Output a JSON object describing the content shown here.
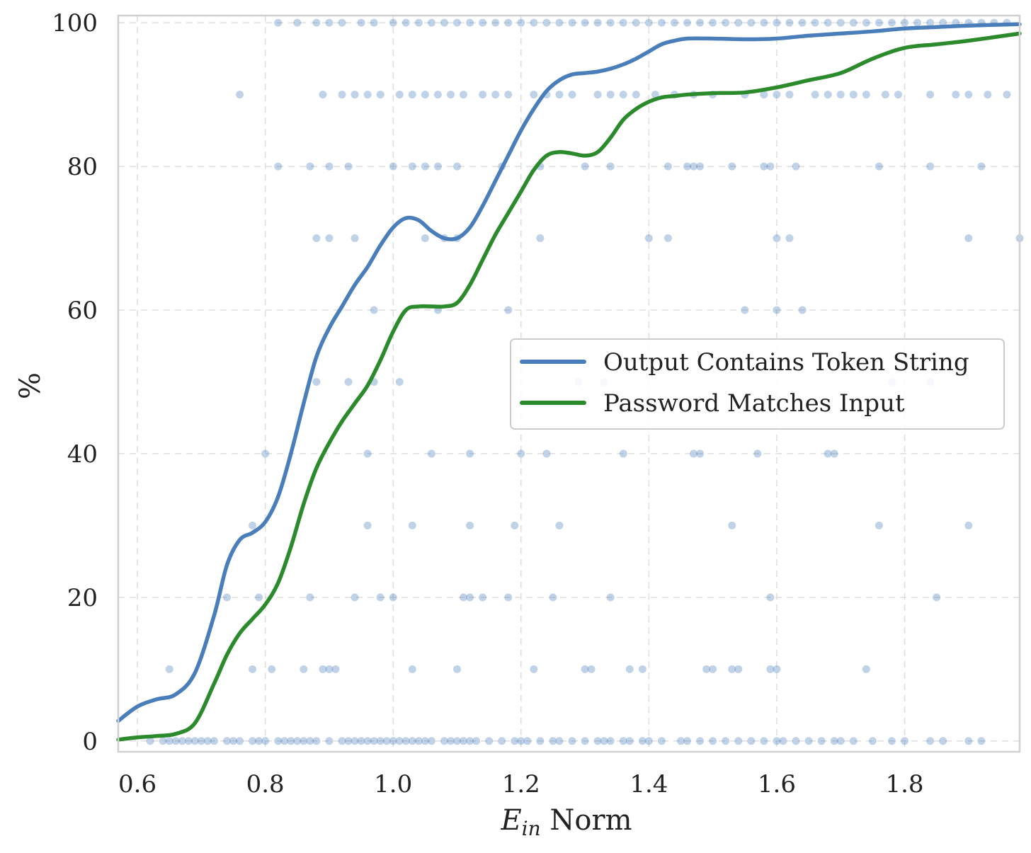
{
  "chart_data": {
    "type": "line",
    "title": "",
    "xlabel": "E_in Norm",
    "xlabel_parts": {
      "symbol": "E",
      "subscript": "in",
      "rest": " Norm"
    },
    "ylabel": "%",
    "xlim": [
      0.57,
      1.98
    ],
    "ylim": [
      -1.5,
      101
    ],
    "xticks": [
      0.6,
      0.8,
      1.0,
      1.2,
      1.4,
      1.6,
      1.8
    ],
    "xtick_labels": [
      "0.6",
      "0.8",
      "1.0",
      "1.2",
      "1.4",
      "1.6",
      "1.8"
    ],
    "yticks": [
      0,
      20,
      40,
      60,
      80,
      100
    ],
    "ytick_labels": [
      "0",
      "20",
      "40",
      "60",
      "80",
      "100"
    ],
    "grid": true,
    "legend_position": "center-right",
    "series": [
      {
        "name": "Output Contains Token String",
        "color": "#4a7ebb",
        "x": [
          0.57,
          0.6,
          0.63,
          0.66,
          0.69,
          0.72,
          0.74,
          0.76,
          0.78,
          0.8,
          0.82,
          0.84,
          0.86,
          0.88,
          0.9,
          0.92,
          0.94,
          0.96,
          0.98,
          1.0,
          1.02,
          1.04,
          1.06,
          1.08,
          1.1,
          1.12,
          1.14,
          1.16,
          1.18,
          1.2,
          1.22,
          1.24,
          1.26,
          1.28,
          1.3,
          1.32,
          1.34,
          1.36,
          1.38,
          1.4,
          1.42,
          1.44,
          1.46,
          1.5,
          1.55,
          1.6,
          1.65,
          1.7,
          1.75,
          1.8,
          1.85,
          1.9,
          1.98
        ],
        "y": [
          2.8,
          4.8,
          5.8,
          6.5,
          9.5,
          17.5,
          24.5,
          28,
          29,
          30.5,
          34,
          40,
          47,
          53.5,
          57.5,
          60.5,
          63.5,
          66,
          69,
          71.5,
          72.8,
          72.5,
          71,
          70,
          70,
          71.5,
          74.5,
          78,
          81.5,
          85,
          88,
          90.5,
          92,
          92.8,
          93,
          93.2,
          93.6,
          94.2,
          95,
          96,
          97,
          97.5,
          97.8,
          97.8,
          97.7,
          97.8,
          98.2,
          98.5,
          98.8,
          99.2,
          99.4,
          99.6,
          99.8
        ]
      },
      {
        "name": "Password Matches Input",
        "color": "#2b8a2b",
        "x": [
          0.57,
          0.6,
          0.63,
          0.66,
          0.69,
          0.72,
          0.74,
          0.76,
          0.78,
          0.8,
          0.82,
          0.84,
          0.86,
          0.88,
          0.9,
          0.92,
          0.94,
          0.96,
          0.98,
          1.0,
          1.02,
          1.04,
          1.06,
          1.08,
          1.1,
          1.12,
          1.14,
          1.16,
          1.18,
          1.2,
          1.22,
          1.24,
          1.26,
          1.28,
          1.3,
          1.32,
          1.34,
          1.36,
          1.38,
          1.4,
          1.42,
          1.44,
          1.46,
          1.5,
          1.55,
          1.6,
          1.65,
          1.7,
          1.75,
          1.8,
          1.85,
          1.9,
          1.98
        ],
        "y": [
          0.2,
          0.5,
          0.7,
          1,
          2.5,
          8,
          12,
          15,
          17,
          19,
          22,
          27,
          33,
          38,
          41.5,
          44.5,
          47,
          49.5,
          53,
          57,
          60,
          60.5,
          60.5,
          60.5,
          61,
          63.5,
          67,
          70.5,
          73.5,
          76.5,
          79.5,
          81.5,
          82,
          81.8,
          81.5,
          82,
          84,
          86.5,
          88,
          89,
          89.6,
          89.8,
          90,
          90.2,
          90.3,
          91,
          92,
          93,
          95,
          96.5,
          97,
          97.5,
          98.5
        ]
      }
    ],
    "points": {
      "name": "samples",
      "color": "#4a7ebb",
      "x": [
        0.62,
        0.64,
        0.65,
        0.66,
        0.67,
        0.68,
        0.69,
        0.7,
        0.71,
        0.72,
        0.74,
        0.75,
        0.76,
        0.78,
        0.79,
        0.8,
        0.82,
        0.83,
        0.84,
        0.85,
        0.86,
        0.87,
        0.88,
        0.9,
        0.92,
        0.93,
        0.94,
        0.95,
        0.96,
        0.97,
        0.98,
        0.99,
        1.0,
        1.01,
        1.02,
        1.03,
        1.04,
        1.05,
        1.06,
        1.08,
        1.09,
        1.1,
        1.11,
        1.12,
        1.13,
        1.15,
        1.17,
        1.19,
        1.2,
        1.21,
        1.23,
        1.25,
        1.26,
        1.28,
        1.3,
        1.32,
        1.33,
        1.34,
        1.36,
        1.37,
        1.39,
        1.4,
        1.42,
        1.45,
        1.46,
        1.48,
        1.5,
        1.52,
        1.54,
        1.56,
        1.58,
        1.6,
        1.61,
        1.63,
        1.65,
        1.67,
        1.69,
        1.7,
        1.72,
        1.75,
        1.78,
        1.8,
        1.84,
        1.86,
        1.9,
        1.92,
        0.82,
        0.85,
        0.88,
        0.9,
        0.92,
        0.95,
        0.97,
        1.0,
        1.02,
        1.04,
        1.06,
        1.08,
        1.1,
        1.12,
        1.14,
        1.16,
        1.18,
        1.2,
        1.22,
        1.24,
        1.26,
        1.28,
        1.3,
        1.32,
        1.34,
        1.36,
        1.38,
        1.4,
        1.42,
        1.44,
        1.46,
        1.48,
        1.5,
        1.52,
        1.54,
        1.56,
        1.58,
        1.6,
        1.62,
        1.64,
        1.66,
        1.68,
        1.7,
        1.72,
        1.74,
        1.76,
        1.78,
        1.8,
        1.82,
        1.84,
        1.86,
        1.88,
        1.9,
        1.92,
        1.94,
        1.96,
        0.76,
        0.89,
        0.92,
        0.94,
        0.96,
        0.98,
        1.01,
        1.03,
        1.05,
        1.07,
        1.09,
        1.11,
        1.14,
        1.16,
        1.18,
        1.22,
        1.24,
        1.26,
        1.28,
        1.32,
        1.34,
        1.36,
        1.38,
        1.41,
        1.44,
        1.47,
        1.5,
        1.55,
        1.58,
        1.6,
        1.62,
        1.66,
        1.68,
        1.7,
        1.72,
        1.74,
        1.77,
        1.79,
        1.84,
        1.88,
        1.9,
        1.93,
        1.96,
        0.82,
        0.87,
        0.9,
        0.93,
        1.0,
        1.03,
        1.05,
        1.07,
        1.1,
        1.17,
        1.23,
        1.3,
        1.34,
        1.43,
        1.46,
        1.47,
        1.48,
        1.53,
        1.58,
        1.59,
        1.63,
        1.76,
        1.84,
        1.92,
        0.88,
        0.9,
        0.94,
        1.05,
        1.08,
        1.1,
        1.23,
        1.4,
        1.43,
        1.6,
        1.62,
        1.9,
        1.98,
        0.97,
        1.07,
        1.18,
        1.55,
        1.6,
        1.64,
        0.88,
        0.93,
        0.97,
        1.01,
        1.29,
        1.33,
        1.78,
        1.84,
        0.8,
        0.96,
        1.06,
        1.12,
        1.2,
        1.24,
        1.36,
        1.47,
        1.48,
        1.57,
        1.68,
        1.69,
        0.78,
        0.96,
        1.03,
        1.12,
        1.19,
        1.26,
        1.53,
        1.76,
        1.9,
        0.74,
        0.79,
        0.87,
        0.94,
        0.98,
        1.0,
        1.11,
        1.12,
        1.14,
        1.18,
        1.25,
        1.34,
        1.59,
        1.85,
        0.65,
        0.78,
        0.81,
        0.86,
        0.89,
        0.9,
        0.91,
        1.03,
        1.1,
        1.22,
        1.3,
        1.31,
        1.37,
        1.39,
        1.49,
        1.5,
        1.53,
        1.54,
        1.59,
        1.6,
        1.74
      ],
      "y": [
        0,
        0,
        0,
        0,
        0,
        0,
        0,
        0,
        0,
        0,
        0,
        0,
        0,
        0,
        0,
        0,
        0,
        0,
        0,
        0,
        0,
        0,
        0,
        0,
        0,
        0,
        0,
        0,
        0,
        0,
        0,
        0,
        0,
        0,
        0,
        0,
        0,
        0,
        0,
        0,
        0,
        0,
        0,
        0,
        0,
        0,
        0,
        0,
        0,
        0,
        0,
        0,
        0,
        0,
        0,
        0,
        0,
        0,
        0,
        0,
        0,
        0,
        0,
        0,
        0,
        0,
        0,
        0,
        0,
        0,
        0,
        0,
        0,
        0,
        0,
        0,
        0,
        0,
        0,
        0,
        0,
        0,
        0,
        0,
        0,
        0,
        100,
        100,
        100,
        100,
        100,
        100,
        100,
        100,
        100,
        100,
        100,
        100,
        100,
        100,
        100,
        100,
        100,
        100,
        100,
        100,
        100,
        100,
        100,
        100,
        100,
        100,
        100,
        100,
        100,
        100,
        100,
        100,
        100,
        100,
        100,
        100,
        100,
        100,
        100,
        100,
        100,
        100,
        100,
        100,
        100,
        100,
        100,
        100,
        100,
        100,
        100,
        100,
        100,
        100,
        100,
        100,
        90,
        90,
        90,
        90,
        90,
        90,
        90,
        90,
        90,
        90,
        90,
        90,
        90,
        90,
        90,
        90,
        90,
        90,
        90,
        90,
        90,
        90,
        90,
        90,
        90,
        90,
        90,
        90,
        90,
        90,
        90,
        90,
        90,
        90,
        90,
        90,
        90,
        90,
        90,
        90,
        90,
        90,
        90,
        80,
        80,
        80,
        80,
        80,
        80,
        80,
        80,
        80,
        80,
        80,
        80,
        80,
        80,
        80,
        80,
        80,
        80,
        80,
        80,
        80,
        80,
        80,
        80,
        70,
        70,
        70,
        70,
        70,
        70,
        70,
        70,
        70,
        70,
        70,
        70,
        70,
        60,
        60,
        60,
        60,
        60,
        60,
        50,
        50,
        50,
        50,
        50,
        50,
        50,
        50,
        40,
        40,
        40,
        40,
        40,
        40,
        40,
        40,
        40,
        40,
        40,
        40,
        30,
        30,
        30,
        30,
        30,
        30,
        30,
        30,
        30,
        20,
        20,
        20,
        20,
        20,
        20,
        20,
        20,
        20,
        20,
        20,
        20,
        20,
        20,
        10,
        10,
        10,
        10,
        10,
        10,
        10,
        10,
        10,
        10,
        10,
        10,
        10,
        10,
        10,
        10,
        10,
        10,
        10,
        10,
        10
      ]
    }
  }
}
